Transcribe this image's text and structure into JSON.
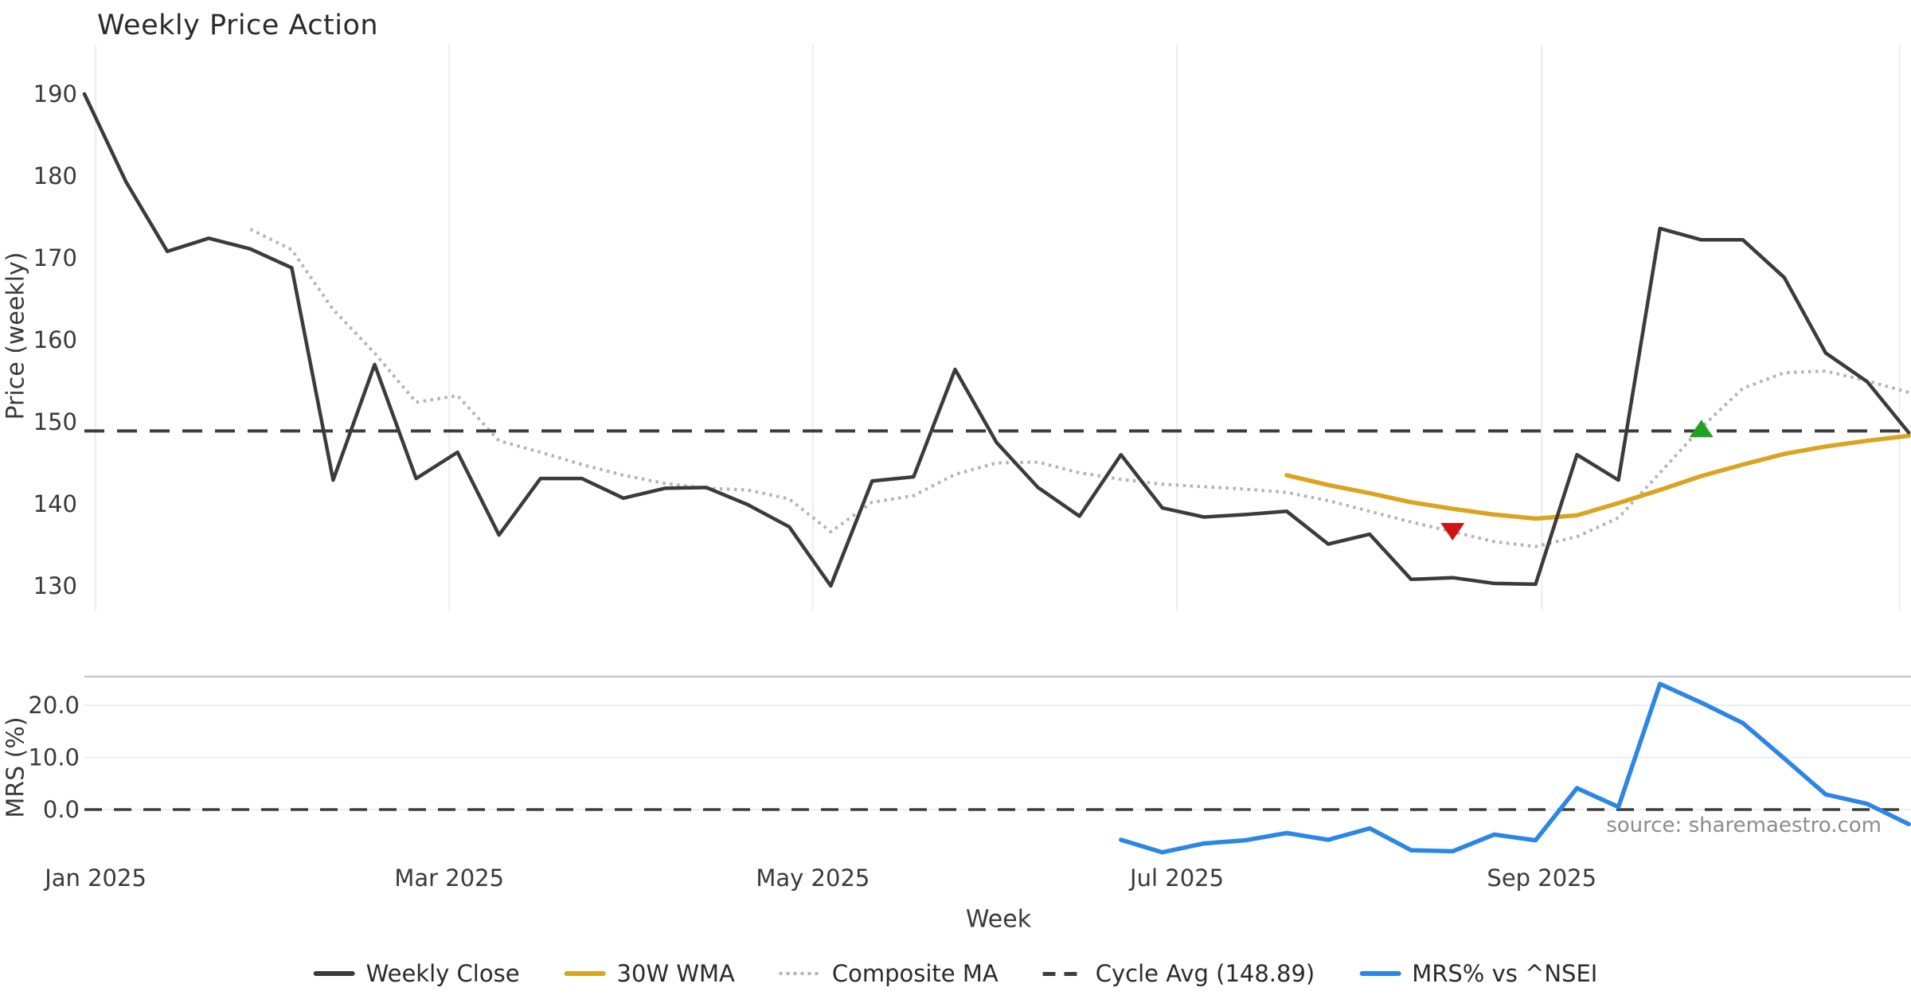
{
  "title": "Weekly Price Action",
  "source_note": "source: sharemaestro.com",
  "axes": {
    "price_ylabel": "Price (weekly)",
    "mrs_ylabel": "MRS (%)",
    "x_label": "Week"
  },
  "colors": {
    "weekly_close": "#3b3b3b",
    "wma_30w": "#d9a521",
    "composite_ma": "#b4b4b4",
    "cycle_avg": "#3d3d3d",
    "mrs_line": "#2b86e6",
    "sell_marker": "#d01317",
    "buy_marker": "#21a121",
    "grid_vertical": "#ebecf3",
    "grid_horizontal": "#ededf2",
    "panel_border": "#c8c8c8",
    "tick_text": "#3a3a3a"
  },
  "legend": {
    "items": [
      {
        "label": "Weekly Close",
        "style": "solid",
        "color": "#3b3b3b"
      },
      {
        "label": "30W WMA",
        "style": "solid",
        "color": "#d9a521"
      },
      {
        "label": "Composite MA",
        "style": "dotted",
        "color": "#b4b4b4"
      },
      {
        "label": "Cycle Avg (148.89)",
        "style": "dashed",
        "color": "#3d3d3d"
      },
      {
        "label": "MRS% vs ^NSEI",
        "style": "solid",
        "color": "#2b86e6"
      }
    ]
  },
  "chart_data": [
    {
      "type": "line",
      "panel": "price",
      "title": "Weekly Price Action",
      "ylabel": "Price (weekly)",
      "ylim": [
        127.0,
        195.8
      ],
      "yticks": [
        190,
        180,
        170,
        160,
        150,
        140,
        130
      ],
      "x_unit": "week_index_starting_2024-12-29",
      "n_weeks": 45,
      "xticks": [
        {
          "label": "Jan 2025",
          "week": 0.27
        },
        {
          "label": "Mar 2025",
          "week": 8.8
        },
        {
          "label": "May 2025",
          "week": 17.57
        },
        {
          "label": "Jul 2025",
          "week": 26.35
        },
        {
          "label": "Sep 2025",
          "week": 35.15
        },
        {
          "label": "",
          "week": 43.78
        }
      ],
      "grid": "vertical-only",
      "series": [
        {
          "name": "Weekly Close",
          "style": "solid",
          "width": 4.5,
          "color": "#3b3b3b",
          "start_week": 0,
          "values": [
            190.0,
            179.3,
            170.8,
            172.4,
            171.1,
            168.8,
            142.9,
            157.0,
            143.1,
            146.3,
            136.2,
            143.1,
            143.1,
            140.7,
            141.9,
            142.0,
            139.9,
            137.2,
            130.0,
            142.8,
            143.3,
            156.4,
            147.5,
            142.0,
            138.5,
            146.0,
            139.5,
            138.4,
            138.7,
            139.1,
            135.1,
            136.3,
            130.8,
            131.0,
            130.3,
            130.2,
            146.0,
            142.9,
            173.6,
            172.2,
            172.2,
            167.6,
            158.4,
            154.9,
            148.7
          ]
        },
        {
          "name": "30W WMA",
          "style": "solid",
          "width": 5.5,
          "color": "#d9a521",
          "start_week": 29,
          "values": [
            143.5,
            142.3,
            141.3,
            140.2,
            139.4,
            138.7,
            138.2,
            138.6,
            140.1,
            141.7,
            143.4,
            144.8,
            146.1,
            147.0,
            147.7,
            148.3
          ]
        },
        {
          "name": "Composite MA",
          "style": "dotted",
          "width": 4,
          "color": "#b4b4b4",
          "start_week": 4,
          "values": [
            173.5,
            171.0,
            163.7,
            158.4,
            152.4,
            153.2,
            147.7,
            146.3,
            144.8,
            143.5,
            142.5,
            141.9,
            141.7,
            140.6,
            136.6,
            140.2,
            141.0,
            143.6,
            145.0,
            145.1,
            143.8,
            143.0,
            142.4,
            142.1,
            141.8,
            141.4,
            140.4,
            139.1,
            137.8,
            136.6,
            135.4,
            134.8,
            136.0,
            138.3,
            143.8,
            149.3,
            154.1,
            156.0,
            156.2,
            155.0,
            153.6
          ]
        },
        {
          "name": "Cycle Avg (148.89)",
          "style": "dashed",
          "width": 4,
          "color": "#3d3d3d",
          "hline": 148.89
        }
      ],
      "markers": [
        {
          "name": "sell-signal",
          "shape": "triangle-down",
          "color": "#d01317",
          "week": 33,
          "value": 136.6
        },
        {
          "name": "buy-signal",
          "shape": "triangle-up",
          "color": "#21a121",
          "week": 39,
          "value": 149.2
        }
      ]
    },
    {
      "type": "line",
      "panel": "mrs",
      "ylabel": "MRS (%)",
      "ylim": [
        -9.6,
        25.5
      ],
      "yticks": [
        {
          "label": "20.0",
          "value": 20
        },
        {
          "label": "10.0",
          "value": 10
        },
        {
          "label": "0.0",
          "value": 0
        }
      ],
      "grid": "horizontal-only",
      "series": [
        {
          "name": "MRS% vs ^NSEI",
          "style": "solid",
          "width": 5.5,
          "color": "#2b86e6",
          "start_week": 25,
          "values": [
            -5.8,
            -8.2,
            -6.5,
            -5.9,
            -4.5,
            -5.8,
            -3.6,
            -7.8,
            -8.0,
            -4.8,
            -5.9,
            4.1,
            0.5,
            24.1,
            20.5,
            16.6,
            9.8,
            2.9,
            1.1,
            -2.8
          ]
        },
        {
          "name": "zero-line",
          "style": "dashed",
          "width": 3.5,
          "color": "#3d3d3d",
          "hline": 0
        }
      ]
    }
  ]
}
